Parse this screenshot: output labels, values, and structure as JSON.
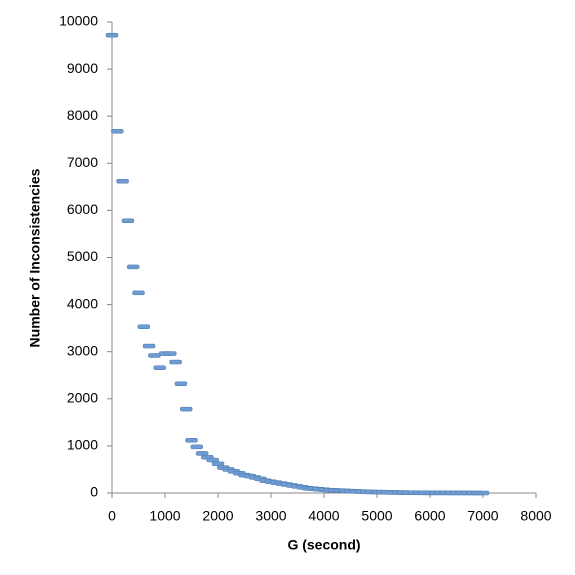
{
  "chart_data": {
    "type": "scatter",
    "x_label": "G (second)",
    "y_label": "Number of Inconsistencies",
    "marker": "dash",
    "color": "#6f9bd1",
    "grid": false,
    "xlim": [
      0,
      8000
    ],
    "xticks": [
      0,
      1000,
      2000,
      3000,
      4000,
      5000,
      6000,
      7000,
      8000
    ],
    "ylim": [
      0,
      10000
    ],
    "yticks": [
      0,
      1000,
      2000,
      3000,
      4000,
      5000,
      6000,
      7000,
      8000,
      9000,
      10000
    ],
    "x": [
      0,
      100,
      200,
      300,
      400,
      500,
      600,
      700,
      800,
      900,
      1000,
      1100,
      1200,
      1300,
      1400,
      1500,
      1600,
      1700,
      1800,
      1900,
      2000,
      2100,
      2200,
      2300,
      2400,
      2500,
      2600,
      2700,
      2800,
      2900,
      3000,
      3100,
      3200,
      3300,
      3400,
      3500,
      3600,
      3700,
      3800,
      3900,
      4000,
      4100,
      4200,
      4300,
      4400,
      4500,
      4600,
      4700,
      4800,
      4900,
      5000,
      5100,
      5200,
      5300,
      5400,
      5500,
      5600,
      5700,
      5800,
      5900,
      6000,
      6100,
      6200,
      6300,
      6400,
      6500,
      6600,
      6700,
      6800,
      6900,
      7000
    ],
    "values": [
      9720,
      7680,
      6620,
      5780,
      4800,
      4250,
      3530,
      3120,
      2920,
      2660,
      2960,
      2960,
      2780,
      2320,
      1780,
      1120,
      980,
      840,
      760,
      700,
      620,
      540,
      500,
      460,
      420,
      380,
      360,
      330,
      300,
      260,
      240,
      220,
      200,
      180,
      160,
      140,
      120,
      100,
      90,
      80,
      70,
      60,
      55,
      50,
      45,
      40,
      35,
      30,
      25,
      22,
      20,
      18,
      15,
      12,
      10,
      8,
      6,
      5,
      4,
      3,
      3,
      2,
      2,
      2,
      1,
      1,
      1,
      1,
      0,
      0,
      0
    ]
  }
}
